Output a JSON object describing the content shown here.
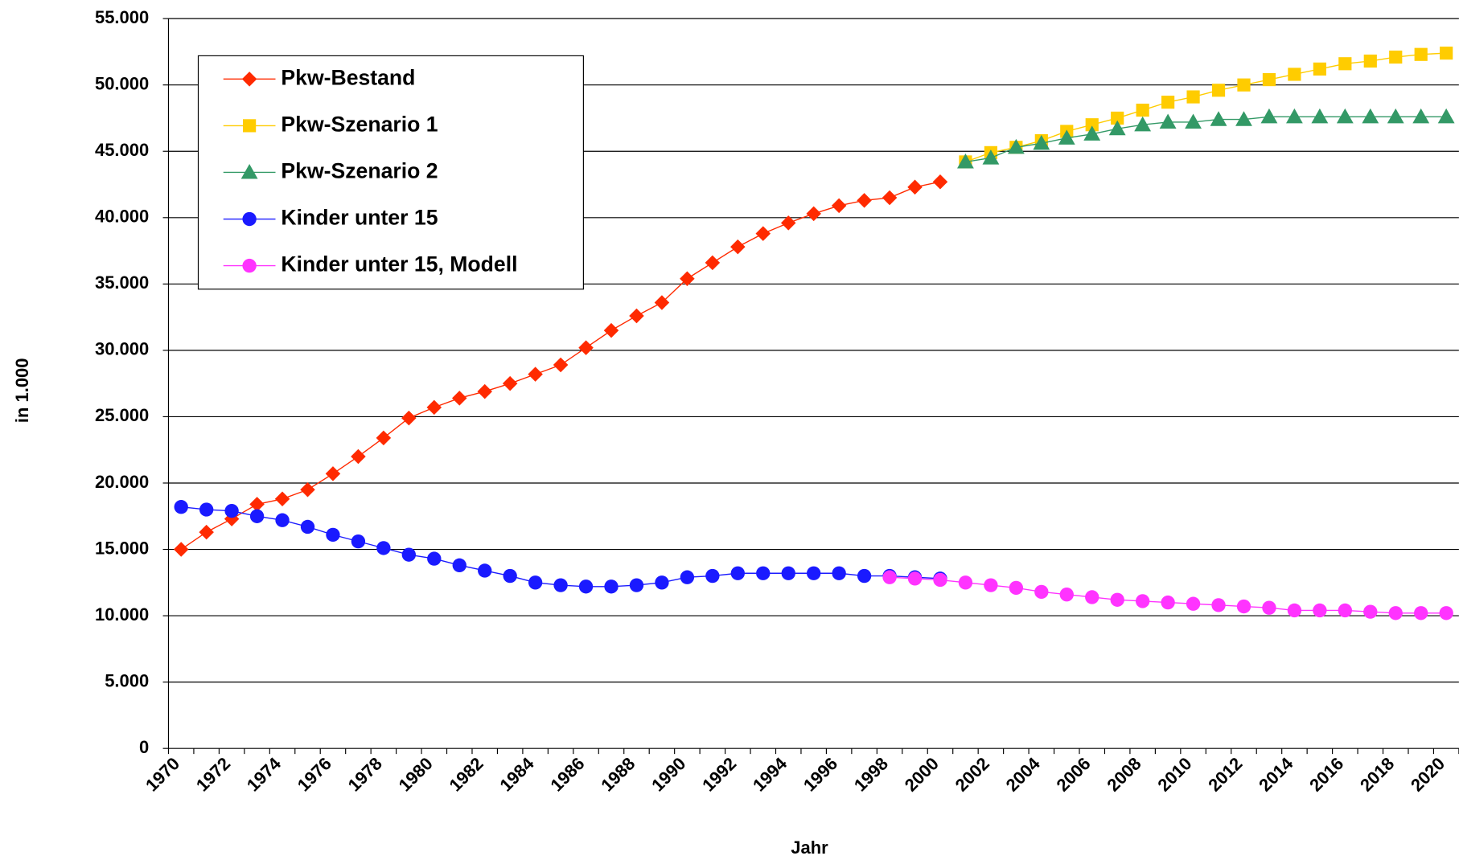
{
  "chart_data": {
    "type": "line",
    "x_label": "Jahr",
    "y_label": "in 1.000",
    "categories": [
      1970,
      null,
      1972,
      null,
      1974,
      null,
      1976,
      null,
      1978,
      null,
      1980,
      null,
      1982,
      null,
      1984,
      null,
      1986,
      null,
      1988,
      null,
      1990,
      null,
      1992,
      null,
      1994,
      null,
      1996,
      null,
      1998,
      null,
      2000,
      null,
      2002,
      null,
      2004,
      null,
      2006,
      null,
      2008,
      null,
      2010,
      null,
      2012,
      null,
      2014,
      null,
      2016,
      null,
      2018,
      null,
      2020
    ],
    "ylim": [
      0,
      55000
    ],
    "yticks": [
      0,
      {
        "value": 5000,
        "label": "5.000"
      },
      {
        "value": 10000,
        "label": "10.000"
      },
      {
        "value": 15000,
        "label": "15.000"
      },
      {
        "value": 20000,
        "label": "20.000"
      },
      {
        "value": 25000,
        "label": "25.000"
      },
      {
        "value": 30000,
        "label": "30.000"
      },
      {
        "value": 35000,
        "label": "35.000"
      },
      {
        "value": 40000,
        "label": "40.000"
      },
      {
        "value": 45000,
        "label": "45.000"
      },
      {
        "value": 50000,
        "label": "50.000"
      },
      {
        "value": 55000,
        "label": "55.000"
      }
    ],
    "grid": true,
    "legend": "upper left",
    "series": [
      {
        "name": "Pkw-Bestand",
        "color": "#ff2a00",
        "marker": "diamond",
        "values": [
          15000,
          16300,
          17300,
          18400,
          18800,
          19500,
          20700,
          22000,
          23400,
          24900,
          25700,
          26400,
          26900,
          27500,
          28200,
          28900,
          30200,
          31500,
          32600,
          33600,
          35400,
          36600,
          37800,
          38800,
          39600,
          40300,
          40900,
          41300,
          41500,
          42300,
          42700,
          null,
          null,
          null,
          null,
          null,
          null,
          null,
          null,
          null,
          null,
          null,
          null,
          null,
          null,
          null,
          null,
          null,
          null,
          null,
          null
        ]
      },
      {
        "name": "Pkw-Szenario 1",
        "color": "#ffcc00",
        "marker": "square",
        "values": [
          null,
          null,
          null,
          null,
          null,
          null,
          null,
          null,
          null,
          null,
          null,
          null,
          null,
          null,
          null,
          null,
          null,
          null,
          null,
          null,
          null,
          null,
          null,
          null,
          null,
          null,
          null,
          null,
          null,
          null,
          null,
          44200,
          44900,
          45300,
          45800,
          46500,
          47000,
          47500,
          48100,
          48700,
          49100,
          49600,
          50000,
          50400,
          50800,
          51200,
          51600,
          51800,
          52100,
          52300,
          52400
        ]
      },
      {
        "name": "Pkw-Szenario 2",
        "color": "#339966",
        "marker": "triangle",
        "values": [
          null,
          null,
          null,
          null,
          null,
          null,
          null,
          null,
          null,
          null,
          null,
          null,
          null,
          null,
          null,
          null,
          null,
          null,
          null,
          null,
          null,
          null,
          null,
          null,
          null,
          null,
          null,
          null,
          null,
          null,
          null,
          44200,
          44500,
          45300,
          45600,
          46000,
          46300,
          46700,
          47000,
          47200,
          47200,
          47400,
          47400,
          47600,
          47600,
          47600,
          47600,
          47600,
          47600,
          47600,
          47600
        ]
      },
      {
        "name": "Kinder unter 15",
        "color": "#1a1aff",
        "marker": "circle",
        "values": [
          18200,
          18000,
          17900,
          17500,
          17200,
          16700,
          16100,
          15600,
          15100,
          14600,
          14300,
          13800,
          13400,
          13000,
          12500,
          12300,
          12200,
          12200,
          12300,
          12500,
          12900,
          13000,
          13200,
          13200,
          13200,
          13200,
          13200,
          13000,
          13000,
          12900,
          12800,
          null,
          null,
          null,
          null,
          null,
          null,
          null,
          null,
          null,
          null,
          null,
          null,
          null,
          null,
          null,
          null,
          null,
          null,
          null,
          null
        ]
      },
      {
        "name": "Kinder unter 15, Modell",
        "color": "#ff33ff",
        "marker": "circle",
        "values": [
          null,
          null,
          null,
          null,
          null,
          null,
          null,
          null,
          null,
          null,
          null,
          null,
          null,
          null,
          null,
          null,
          null,
          null,
          null,
          null,
          null,
          null,
          null,
          null,
          null,
          null,
          null,
          null,
          12900,
          12800,
          12700,
          12500,
          12300,
          12100,
          11800,
          11600,
          11400,
          11200,
          11100,
          11000,
          10900,
          10800,
          10700,
          10600,
          10400,
          10400,
          10400,
          10300,
          10200,
          10200,
          10200
        ]
      }
    ]
  }
}
